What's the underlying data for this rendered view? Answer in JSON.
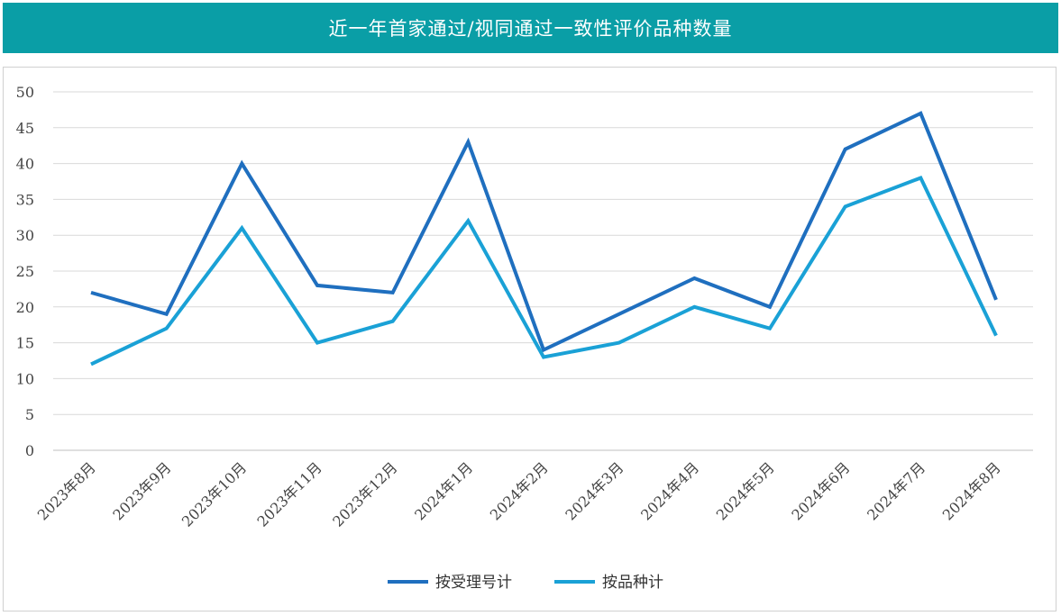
{
  "header": {
    "title": "近一年首家通过/视同通过一致性评价品种数量"
  },
  "chart_data": {
    "type": "line",
    "title": "近一年首家通过/视同通过一致性评价品种数量",
    "categories": [
      "2023年8月",
      "2023年9月",
      "2023年10月",
      "2023年11月",
      "2023年12月",
      "2024年1月",
      "2024年2月",
      "2024年3月",
      "2024年4月",
      "2024年5月",
      "2024年6月",
      "2024年7月",
      "2024年8月"
    ],
    "series": [
      {
        "name": "按受理号计",
        "color": "#1f6fbf",
        "values": [
          22,
          19,
          40,
          23,
          22,
          43,
          14,
          19,
          24,
          20,
          42,
          47,
          21
        ]
      },
      {
        "name": "按品种计",
        "color": "#1aa1d6",
        "values": [
          12,
          17,
          31,
          15,
          18,
          32,
          13,
          15,
          20,
          17,
          34,
          38,
          16
        ]
      }
    ],
    "ylim": [
      0,
      50
    ],
    "yticks": [
      0,
      5,
      10,
      15,
      20,
      25,
      30,
      35,
      40,
      45,
      50
    ],
    "grid": true,
    "legend": "bottom-center",
    "xlabel": "",
    "ylabel": ""
  }
}
